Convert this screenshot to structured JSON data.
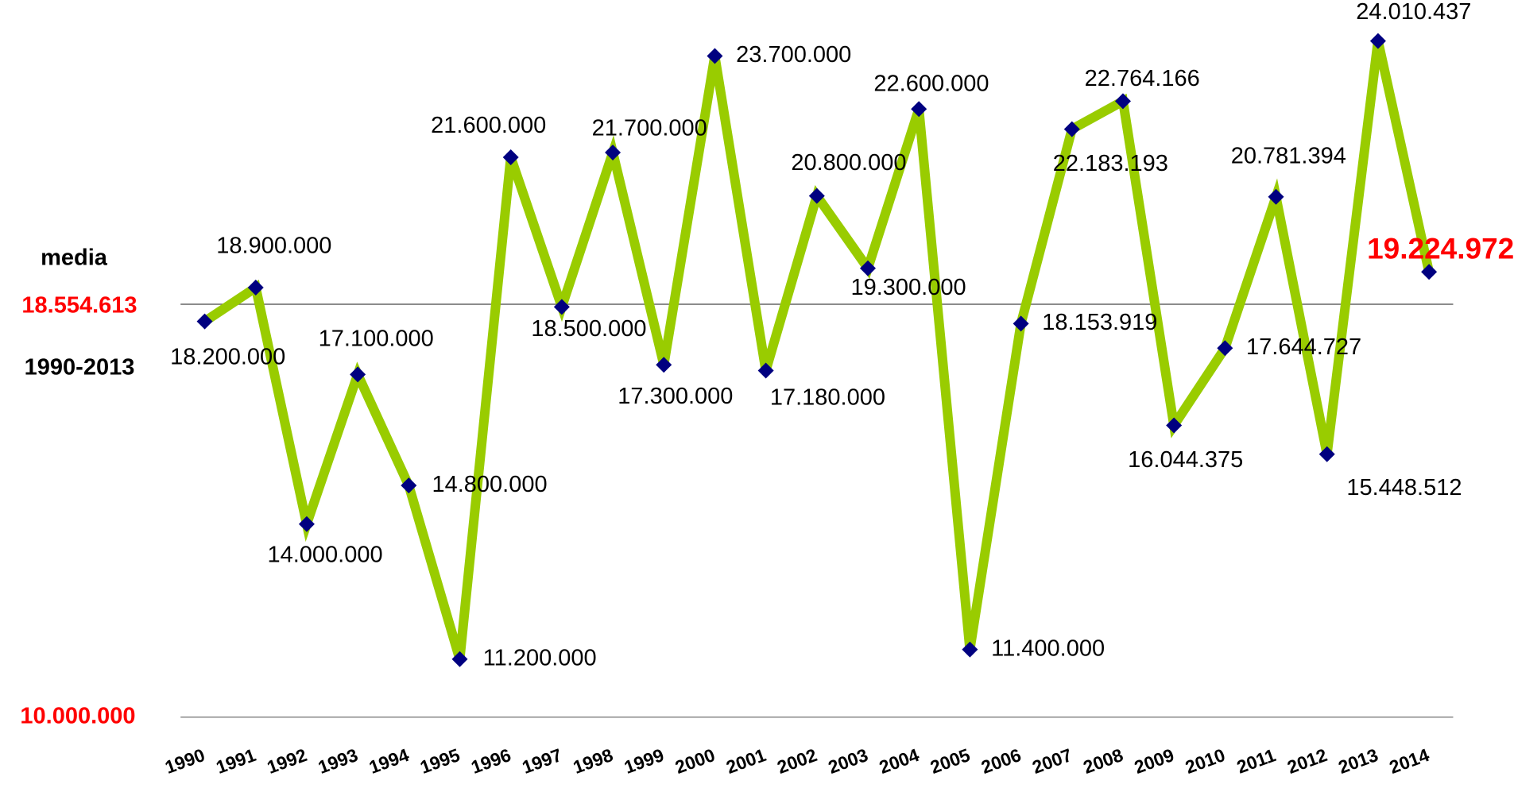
{
  "chart_data": {
    "type": "line",
    "categories": [
      "1990",
      "1991",
      "1992",
      "1993",
      "1994",
      "1995",
      "1996",
      "1997",
      "1998",
      "1999",
      "2000",
      "2001",
      "2002",
      "2003",
      "2004",
      "2005",
      "2006",
      "2007",
      "2008",
      "2009",
      "2010",
      "2011",
      "2012",
      "2013",
      "2014"
    ],
    "series": [
      {
        "color": "#99cc00",
        "marker_color": "#000080",
        "values": [
          18200000,
          18900000,
          14000000,
          17100000,
          14800000,
          11200000,
          21600000,
          18500000,
          21700000,
          17300000,
          23700000,
          17180000,
          20800000,
          19300000,
          22600000,
          11400000,
          18153919,
          22183193,
          22764166,
          16044375,
          17644727,
          20781394,
          15448512,
          24010437,
          19224972
        ],
        "value_labels": [
          "18.200.000",
          "18.900.000",
          "14.000.000",
          "17.100.000",
          "14.800.000",
          "11.200.000",
          "21.600.000",
          "18.500.000",
          "21.700.000",
          "17.300.000",
          "23.700.000",
          "17.180.000",
          "20.800.000",
          "19.300.000",
          "22.600.000",
          "11.400.000",
          "18.153.919",
          "22.183.193",
          "22.764.166",
          "16.044.375",
          "17.644.727",
          "20.781.394",
          "15.448.512",
          "24.010.437",
          "19.224.972"
        ]
      }
    ],
    "ylim": [
      10000000,
      25000000
    ],
    "yticks": [
      {
        "value": 10000000,
        "label": "10.000.000"
      }
    ],
    "reference_line": {
      "label": "media",
      "value": 18554613,
      "value_label": "18.554.613",
      "period": "1990-2013"
    },
    "highlight_color": "#ff0000"
  }
}
